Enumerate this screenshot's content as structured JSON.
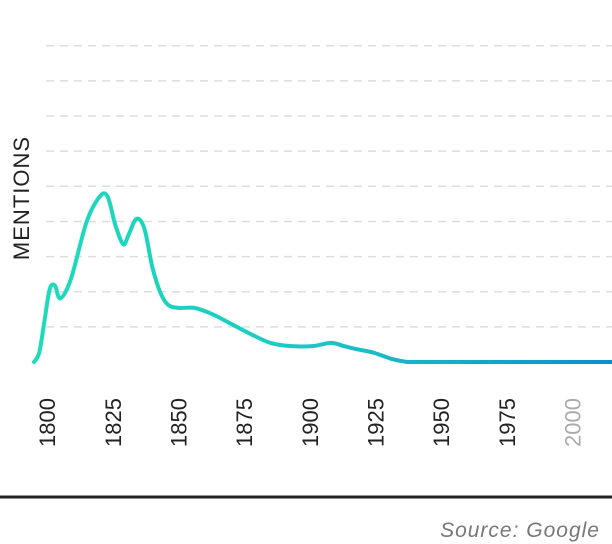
{
  "chart_data": {
    "type": "line",
    "title": "",
    "xlabel": "",
    "ylabel": "MENTIONS",
    "xlim": [
      1795,
      2015
    ],
    "ylim": [
      0,
      100
    ],
    "grid": true,
    "x_ticks": [
      {
        "label": "1800",
        "value": 1800,
        "muted": false
      },
      {
        "label": "1825",
        "value": 1825,
        "muted": false
      },
      {
        "label": "1850",
        "value": 1850,
        "muted": false
      },
      {
        "label": "1875",
        "value": 1875,
        "muted": false
      },
      {
        "label": "1900",
        "value": 1900,
        "muted": false
      },
      {
        "label": "1925",
        "value": 1925,
        "muted": false
      },
      {
        "label": "1950",
        "value": 1950,
        "muted": false
      },
      {
        "label": "1975",
        "value": 1975,
        "muted": false
      },
      {
        "label": "2000",
        "value": 2000,
        "muted": true
      }
    ],
    "series": [
      {
        "x": [
          1795,
          1797,
          1799,
          1801,
          1803,
          1805,
          1809,
          1815,
          1820,
          1823,
          1826,
          1829,
          1831,
          1834,
          1837,
          1840,
          1843,
          1846,
          1850,
          1856,
          1863,
          1870,
          1877,
          1885,
          1893,
          1901,
          1908,
          1913,
          1918,
          1924,
          1931,
          1937,
          1940,
          1950,
          1975,
          2000,
          2015
        ],
        "y": [
          0,
          3,
          13,
          23,
          24,
          20,
          26,
          44,
          52,
          52,
          43,
          37,
          40,
          45,
          42,
          30,
          22,
          18,
          17,
          17,
          15,
          12,
          9,
          6,
          5,
          5,
          6,
          5,
          4,
          3,
          1,
          0,
          0,
          0,
          0,
          0,
          0
        ]
      }
    ],
    "colors": {
      "line_left": "#1ddcba",
      "line_right": "#0a8fcf",
      "grid": "#dddddd",
      "tick": "#222222",
      "tick_muted": "#aaaaaa",
      "baseline": "#222222"
    }
  },
  "source": "Source: Google"
}
